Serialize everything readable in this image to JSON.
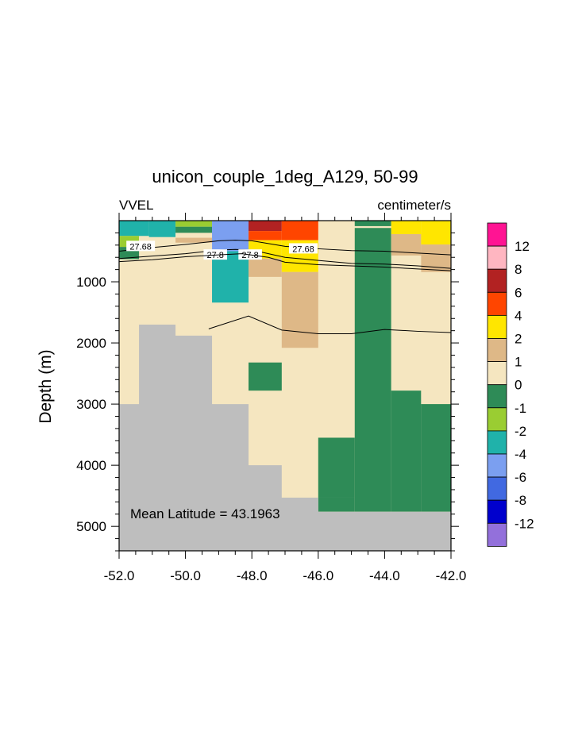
{
  "chart_data": {
    "type": "heatmap",
    "title": "unicon_couple_1deg_A129, 50-99",
    "left_label": "VVEL",
    "right_label": "centimeter/s",
    "ylabel": "Depth (m)",
    "xlabel": "",
    "xlim": [
      -52.0,
      -42.0
    ],
    "ylim": [
      5400,
      0
    ],
    "y_reversed": true,
    "x_ticks": [
      "-52.0",
      "-50.0",
      "-48.0",
      "-46.0",
      "-44.0",
      "-42.0"
    ],
    "x_tick_values": [
      -52,
      -50,
      -48,
      -46,
      -44,
      -42
    ],
    "y_ticks": [
      "1000",
      "2000",
      "3000",
      "4000",
      "5000"
    ],
    "y_tick_values": [
      1000,
      2000,
      3000,
      4000,
      5000
    ],
    "annotation": "Mean Latitude = 43.1963",
    "legend": {
      "placement": "right",
      "labels": [
        "12",
        "8",
        "6",
        "4",
        "2",
        "1",
        "0",
        "-1",
        "-2",
        "-4",
        "-6",
        "-8",
        "-12"
      ],
      "colors": [
        "#ff1493",
        "#ffb6c1",
        "#b22222",
        "#ff4500",
        "#ffe600",
        "#deb887",
        "#f5e6c0",
        "#2e8b57",
        "#9acd32",
        "#20b2aa",
        "#7b9ff0",
        "#4169e1",
        "#0000cd",
        "#9370db"
      ]
    },
    "palette": {
      "land": "#bebebe",
      "p12": "#ff1493",
      "p8": "#ffb6c1",
      "p6": "#b22222",
      "p4": "#ff4500",
      "p2": "#ffe600",
      "p1": "#deb887",
      "p0": "#f5e6c0",
      "n0": "#2e8b57",
      "n1": "#9acd32",
      "n2": "#20b2aa",
      "n4": "#7b9ff0",
      "n6": "#4169e1",
      "n8": "#0000cd",
      "n12": "#9370db"
    },
    "background_class": "p0",
    "cells": [
      {
        "x": [
          -52.0,
          -51.4
        ],
        "y": [
          0,
          3000
        ],
        "c": "p0"
      },
      {
        "x": [
          -51.4,
          -50.3
        ],
        "y": [
          0,
          1700
        ],
        "c": "p0"
      },
      {
        "x": [
          -50.3,
          -49.2
        ],
        "y": [
          0,
          1880
        ],
        "c": "p0"
      },
      {
        "x": [
          -49.2,
          -48.1
        ],
        "y": [
          0,
          3000
        ],
        "c": "p0"
      },
      {
        "x": [
          -48.1,
          -47.1
        ],
        "y": [
          0,
          4000
        ],
        "c": "p0"
      },
      {
        "x": [
          -47.1,
          -46.0
        ],
        "y": [
          0,
          4550
        ],
        "c": "p0"
      },
      {
        "x": [
          -46.0,
          -44.9
        ],
        "y": [
          0,
          3550
        ],
        "c": "p0"
      },
      {
        "x": [
          -52.0,
          -51.1
        ],
        "y": [
          0,
          250
        ],
        "c": "n2"
      },
      {
        "x": [
          -51.1,
          -50.3
        ],
        "y": [
          0,
          270
        ],
        "c": "n2"
      },
      {
        "x": [
          -52.0,
          -51.4
        ],
        "y": [
          250,
          430
        ],
        "c": "n1"
      },
      {
        "x": [
          -52.0,
          -51.4
        ],
        "y": [
          430,
          630
        ],
        "c": "n0"
      },
      {
        "x": [
          -51.4,
          -50.3
        ],
        "y": [
          270,
          340
        ],
        "c": "p0"
      },
      {
        "x": [
          -50.3,
          -49.2
        ],
        "y": [
          0,
          100
        ],
        "c": "n1"
      },
      {
        "x": [
          -50.3,
          -49.2
        ],
        "y": [
          100,
          200
        ],
        "c": "n0"
      },
      {
        "x": [
          -50.3,
          -49.2
        ],
        "y": [
          200,
          280
        ],
        "c": "p0"
      },
      {
        "x": [
          -50.3,
          -49.2
        ],
        "y": [
          280,
          360
        ],
        "c": "p1"
      },
      {
        "x": [
          -49.2,
          -48.1
        ],
        "y": [
          0,
          500
        ],
        "c": "n4"
      },
      {
        "x": [
          -49.2,
          -48.1
        ],
        "y": [
          500,
          1340
        ],
        "c": "n2"
      },
      {
        "x": [
          -48.1,
          -47.1
        ],
        "y": [
          0,
          170
        ],
        "c": "p6"
      },
      {
        "x": [
          -48.1,
          -47.1
        ],
        "y": [
          170,
          320
        ],
        "c": "p4"
      },
      {
        "x": [
          -48.1,
          -47.1
        ],
        "y": [
          320,
          620
        ],
        "c": "p2"
      },
      {
        "x": [
          -48.1,
          -47.1
        ],
        "y": [
          620,
          920
        ],
        "c": "p1"
      },
      {
        "x": [
          -48.1,
          -47.1
        ],
        "y": [
          2320,
          2780
        ],
        "c": "n0"
      },
      {
        "x": [
          -47.1,
          -46.0
        ],
        "y": [
          0,
          320
        ],
        "c": "p4"
      },
      {
        "x": [
          -47.1,
          -46.0
        ],
        "y": [
          320,
          840
        ],
        "c": "p2"
      },
      {
        "x": [
          -47.1,
          -46.0
        ],
        "y": [
          840,
          2080
        ],
        "c": "p1"
      },
      {
        "x": [
          -46.0,
          -44.9
        ],
        "y": [
          3550,
          4530
        ],
        "c": "n0"
      },
      {
        "x": [
          -44.9,
          -43.8
        ],
        "y": [
          0,
          90
        ],
        "c": "n0"
      },
      {
        "x": [
          -44.9,
          -43.8
        ],
        "y": [
          120,
          4760
        ],
        "c": "n0"
      },
      {
        "x": [
          -46.0,
          -44.9
        ],
        "y": [
          4530,
          4760
        ],
        "c": "n0"
      },
      {
        "x": [
          -43.8,
          -42.0
        ],
        "y": [
          0,
          2780
        ],
        "c": "p0"
      },
      {
        "x": [
          -43.8,
          -42.9
        ],
        "y": [
          0,
          220
        ],
        "c": "p2"
      },
      {
        "x": [
          -43.8,
          -42.9
        ],
        "y": [
          220,
          570
        ],
        "c": "p1"
      },
      {
        "x": [
          -42.9,
          -42.0
        ],
        "y": [
          0,
          390
        ],
        "c": "p2"
      },
      {
        "x": [
          -42.9,
          -42.0
        ],
        "y": [
          390,
          840
        ],
        "c": "p1"
      },
      {
        "x": [
          -43.8,
          -42.9
        ],
        "y": [
          2780,
          4760
        ],
        "c": "n0"
      },
      {
        "x": [
          -42.9,
          -42.0
        ],
        "y": [
          2780,
          3000
        ],
        "c": "p0"
      },
      {
        "x": [
          -42.9,
          -42.0
        ],
        "y": [
          3000,
          4760
        ],
        "c": "n0"
      }
    ],
    "bathymetry": [
      [
        -52.0,
        3000
      ],
      [
        -51.4,
        3000
      ],
      [
        -51.4,
        1700
      ],
      [
        -50.3,
        1700
      ],
      [
        -50.3,
        1880
      ],
      [
        -49.2,
        1880
      ],
      [
        -49.2,
        3000
      ],
      [
        -48.1,
        3000
      ],
      [
        -48.1,
        4000
      ],
      [
        -47.1,
        4000
      ],
      [
        -47.1,
        4530
      ],
      [
        -46.0,
        4530
      ],
      [
        -46.0,
        4760
      ],
      [
        -42.0,
        4760
      ]
    ],
    "contours": [
      {
        "label": "27.68",
        "points": [
          [
            -52.0,
            500
          ],
          [
            -51.0,
            440
          ],
          [
            -50.0,
            390
          ],
          [
            -49.0,
            330
          ],
          [
            -48.5,
            320
          ],
          [
            -48.0,
            330
          ],
          [
            -47.0,
            420
          ],
          [
            -46.0,
            460
          ],
          [
            -45.0,
            490
          ],
          [
            -44.0,
            500
          ],
          [
            -43.0,
            530
          ],
          [
            -42.0,
            560
          ]
        ],
        "labels_at": [
          [
            -51.35,
            420
          ],
          [
            -46.45,
            460
          ]
        ]
      },
      {
        "label": "27.8",
        "points": [
          [
            -52.0,
            620
          ],
          [
            -51.0,
            580
          ],
          [
            -50.0,
            540
          ],
          [
            -49.0,
            480
          ],
          [
            -48.5,
            470
          ],
          [
            -48.0,
            480
          ],
          [
            -47.0,
            600
          ],
          [
            -46.0,
            650
          ],
          [
            -45.0,
            700
          ],
          [
            -44.0,
            710
          ],
          [
            -43.0,
            740
          ],
          [
            -42.0,
            780
          ]
        ],
        "labels_at": [
          [
            -49.1,
            560
          ],
          [
            -48.05,
            560
          ]
        ]
      },
      {
        "label": "",
        "points": [
          [
            -52.0,
            670
          ],
          [
            -51.0,
            640
          ],
          [
            -50.0,
            590
          ],
          [
            -49.0,
            560
          ],
          [
            -48.3,
            540
          ],
          [
            -47.5,
            600
          ],
          [
            -47.0,
            680
          ],
          [
            -46.0,
            720
          ],
          [
            -45.0,
            740
          ],
          [
            -44.0,
            760
          ],
          [
            -43.0,
            790
          ],
          [
            -42.0,
            820
          ]
        ],
        "labels_at": []
      },
      {
        "label": "",
        "points": [
          [
            -49.3,
            1770
          ],
          [
            -48.1,
            1560
          ],
          [
            -47.1,
            1790
          ],
          [
            -46.0,
            1850
          ],
          [
            -45.0,
            1850
          ],
          [
            -44.0,
            1780
          ],
          [
            -43.0,
            1810
          ],
          [
            -42.0,
            1830
          ]
        ],
        "labels_at": []
      }
    ]
  }
}
